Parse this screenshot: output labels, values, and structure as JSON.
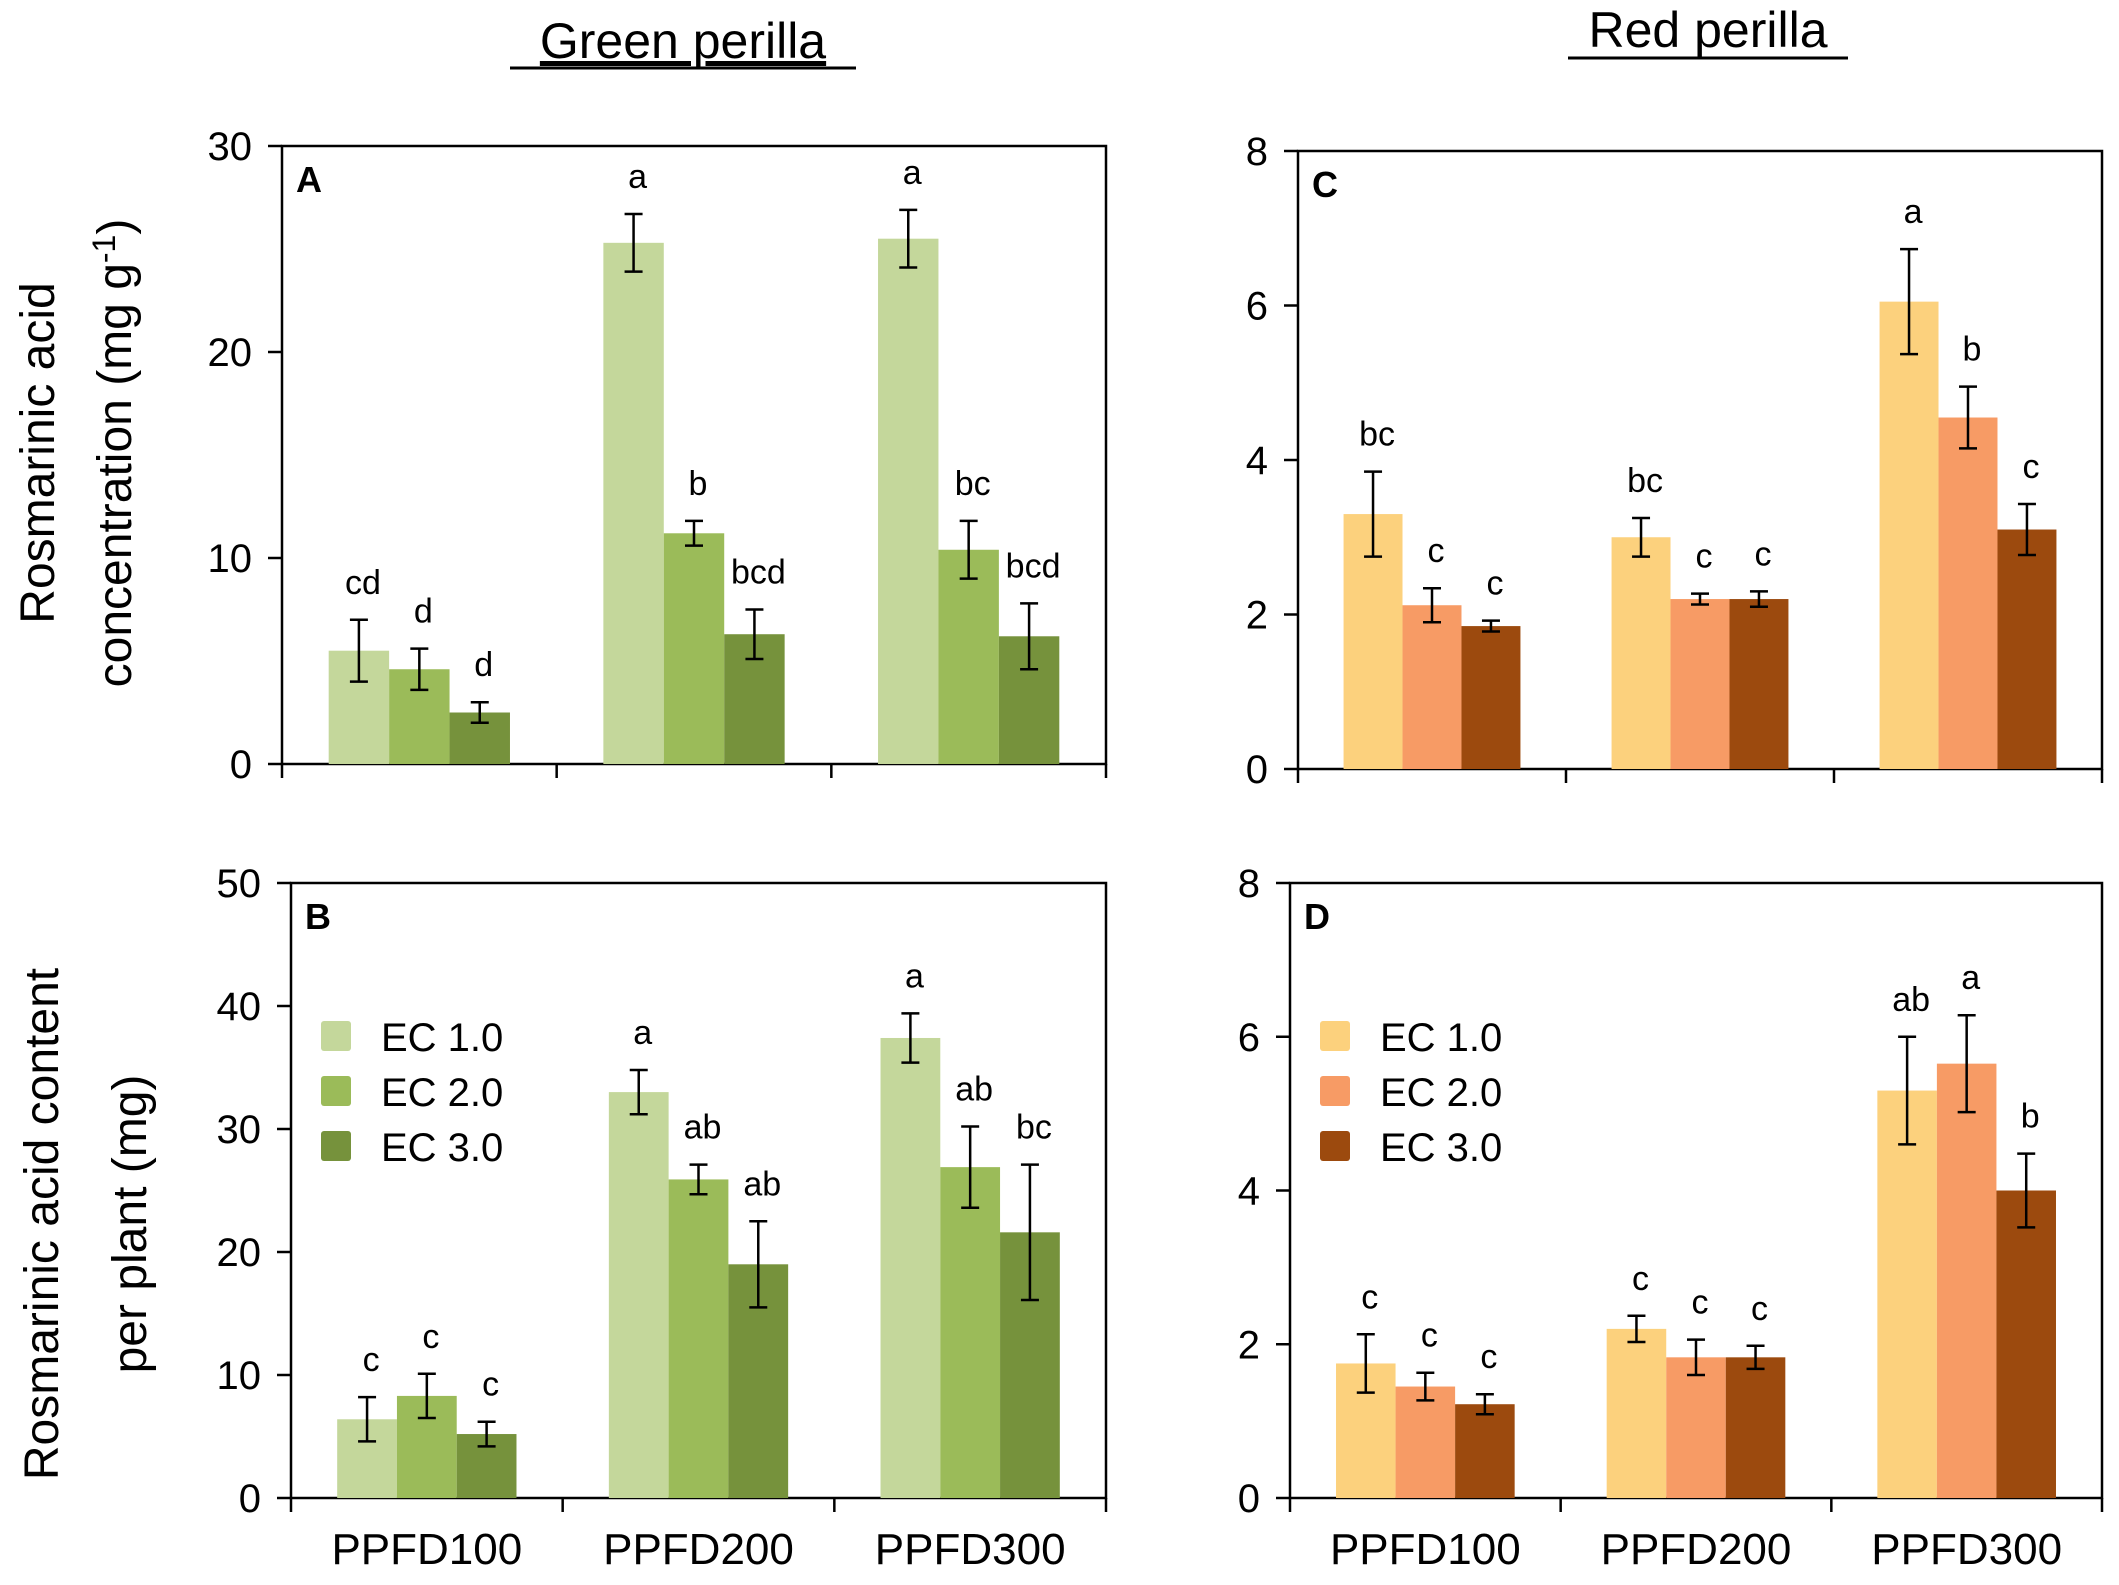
{
  "column_titles": [
    "Green perilla",
    "Red perilla"
  ],
  "colors": {
    "green": [
      "#c4d79b",
      "#9bbb59",
      "#76923c"
    ],
    "red": [
      "#fcd17d",
      "#f79b65",
      "#9c4a0e"
    ]
  },
  "chart_data": [
    {
      "panel": "A",
      "type": "bar",
      "palette": "green",
      "ylabel": [
        "Rosmarinic acid",
        "concentration (mg g",
        "-1",
        ")"
      ],
      "ylim": [
        0,
        30
      ],
      "yticks": [
        0,
        10,
        20,
        30
      ],
      "categories": [
        "PPFD100",
        "PPFD200",
        "PPFD300"
      ],
      "show_xticklabels": false,
      "series": [
        {
          "name": "EC 1.0",
          "values": [
            5.5,
            25.3,
            25.5
          ],
          "errors": [
            1.5,
            1.4,
            1.4
          ],
          "letters": [
            "cd",
            "a",
            "a"
          ]
        },
        {
          "name": "EC 2.0",
          "values": [
            4.6,
            11.2,
            10.4
          ],
          "errors": [
            1.0,
            0.6,
            1.4
          ],
          "letters": [
            "d",
            "b",
            "bc"
          ]
        },
        {
          "name": "EC 3.0",
          "values": [
            2.5,
            6.3,
            6.2
          ],
          "errors": [
            0.5,
            1.2,
            1.6
          ],
          "letters": [
            "d",
            "bcd",
            "bcd"
          ]
        }
      ]
    },
    {
      "panel": "C",
      "type": "bar",
      "palette": "red",
      "ylim": [
        0,
        8
      ],
      "yticks": [
        0,
        2,
        4,
        6,
        8
      ],
      "categories": [
        "PPFD100",
        "PPFD200",
        "PPFD300"
      ],
      "show_xticklabels": false,
      "series": [
        {
          "name": "EC 1.0",
          "values": [
            3.3,
            3.0,
            6.05
          ],
          "errors": [
            0.55,
            0.25,
            0.68
          ],
          "letters": [
            "bc",
            "bc",
            "a"
          ]
        },
        {
          "name": "EC 2.0",
          "values": [
            2.12,
            2.2,
            4.55
          ],
          "errors": [
            0.22,
            0.07,
            0.4
          ],
          "letters": [
            "c",
            "c",
            "b"
          ]
        },
        {
          "name": "EC 3.0",
          "values": [
            1.85,
            2.2,
            3.1
          ],
          "errors": [
            0.07,
            0.1,
            0.33
          ],
          "letters": [
            "c",
            "c",
            "c"
          ]
        }
      ]
    },
    {
      "panel": "B",
      "type": "bar",
      "palette": "green",
      "ylabel": [
        "Rosmarinic acid  content",
        "per plant (mg)"
      ],
      "ylim": [
        0,
        50
      ],
      "yticks": [
        0,
        10,
        20,
        30,
        40,
        50
      ],
      "categories": [
        "PPFD100",
        "PPFD200",
        "PPFD300"
      ],
      "show_xticklabels": true,
      "legend": "upper-left",
      "series": [
        {
          "name": "EC 1.0",
          "values": [
            6.4,
            33.0,
            37.4
          ],
          "errors": [
            1.8,
            1.8,
            2.0
          ],
          "letters": [
            "c",
            "a",
            "a"
          ]
        },
        {
          "name": "EC 2.0",
          "values": [
            8.3,
            25.9,
            26.9
          ],
          "errors": [
            1.8,
            1.2,
            3.3
          ],
          "letters": [
            "c",
            "ab",
            "ab"
          ]
        },
        {
          "name": "EC 3.0",
          "values": [
            5.2,
            19.0,
            21.6
          ],
          "errors": [
            1.0,
            3.5,
            5.5
          ],
          "letters": [
            "c",
            "ab",
            "bc"
          ]
        }
      ]
    },
    {
      "panel": "D",
      "type": "bar",
      "palette": "red",
      "ylim": [
        0,
        8
      ],
      "yticks": [
        0,
        2,
        4,
        6,
        8
      ],
      "categories": [
        "PPFD100",
        "PPFD200",
        "PPFD300"
      ],
      "show_xticklabels": true,
      "legend": "upper-left",
      "series": [
        {
          "name": "EC 1.0",
          "values": [
            1.75,
            2.2,
            5.3
          ],
          "errors": [
            0.38,
            0.17,
            0.7
          ],
          "letters": [
            "c",
            "c",
            "ab"
          ]
        },
        {
          "name": "EC 2.0",
          "values": [
            1.45,
            1.83,
            5.65
          ],
          "errors": [
            0.18,
            0.23,
            0.63
          ],
          "letters": [
            "c",
            "c",
            "a"
          ]
        },
        {
          "name": "EC 3.0",
          "values": [
            1.22,
            1.83,
            4.0
          ],
          "errors": [
            0.13,
            0.15,
            0.48
          ],
          "letters": [
            "c",
            "c",
            "b"
          ]
        }
      ]
    }
  ]
}
